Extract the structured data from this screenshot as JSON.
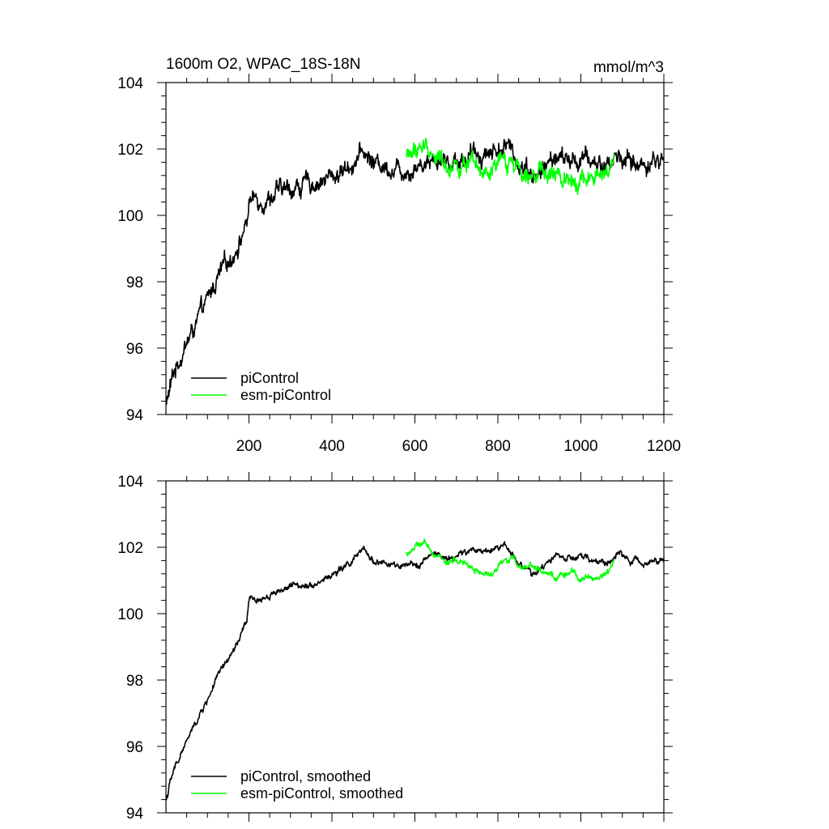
{
  "chart_data": [
    {
      "type": "line",
      "title": "1600m O2, WPAC_18S-18N",
      "units": "mmol/m^3",
      "xlim": [
        0,
        1200
      ],
      "ylim": [
        94,
        104
      ],
      "x_ticks": [
        200,
        400,
        600,
        800,
        1000,
        1200
      ],
      "x_tick_labels": [
        "200",
        "400",
        "600",
        "800",
        "1000",
        "1200"
      ],
      "y_ticks": [
        94,
        96,
        98,
        100,
        102,
        104
      ],
      "y_tick_labels": [
        "94",
        "96",
        "98",
        "100",
        "102",
        "104"
      ],
      "legend_position": "bottom-left",
      "legend": [
        "piControl",
        "esm-piControl"
      ],
      "series": [
        {
          "name": "piControl",
          "color": "#000000",
          "noise": 0.28,
          "x": [
            1,
            10,
            20,
            40,
            60,
            80,
            100,
            120,
            140,
            160,
            180,
            195,
            200,
            215,
            240,
            270,
            300,
            330,
            360,
            390,
            420,
            450,
            475,
            500,
            530,
            560,
            590,
            620,
            650,
            680,
            710,
            740,
            770,
            800,
            820,
            850,
            870,
            890,
            910,
            940,
            970,
            1000,
            1030,
            1060,
            1090,
            1120,
            1150,
            1180,
            1200
          ],
          "y": [
            94.3,
            94.8,
            95.3,
            95.9,
            96.4,
            96.9,
            97.4,
            98.0,
            98.4,
            98.8,
            99.3,
            99.8,
            100.4,
            100.5,
            100.5,
            100.7,
            100.8,
            100.9,
            101.0,
            101.1,
            101.3,
            101.6,
            101.9,
            101.6,
            101.5,
            101.4,
            101.4,
            101.6,
            101.8,
            101.6,
            101.7,
            101.8,
            101.9,
            102.0,
            102.1,
            101.6,
            101.5,
            101.1,
            101.4,
            101.8,
            101.6,
            101.7,
            101.6,
            101.5,
            101.8,
            101.6,
            101.5,
            101.7,
            101.6
          ]
        },
        {
          "name": "esm-piControl",
          "color": "#00ff00",
          "noise": 0.28,
          "x": [
            580,
            600,
            620,
            640,
            660,
            680,
            700,
            720,
            740,
            760,
            780,
            800,
            820,
            840,
            860,
            880,
            900,
            920,
            940,
            960,
            980,
            1000,
            1020,
            1040,
            1060,
            1080
          ],
          "y": [
            101.8,
            101.9,
            102.1,
            101.9,
            101.7,
            101.5,
            101.6,
            101.5,
            101.4,
            101.2,
            101.1,
            101.5,
            101.6,
            101.6,
            101.4,
            101.5,
            101.3,
            101.1,
            101.2,
            101.1,
            101.2,
            101.1,
            101.1,
            101.1,
            101.2,
            101.5
          ]
        }
      ]
    },
    {
      "type": "line",
      "title": "",
      "xlim": [
        0,
        1200
      ],
      "ylim": [
        94,
        104
      ],
      "x_ticks": [
        200,
        400,
        600,
        800,
        1000,
        1200
      ],
      "x_tick_labels": [],
      "y_ticks": [
        94,
        96,
        98,
        100,
        102,
        104
      ],
      "y_tick_labels": [
        "94",
        "96",
        "98",
        "100",
        "102",
        "104"
      ],
      "legend_position": "bottom-left",
      "legend": [
        "piControl, smoothed",
        "esm-piControl, smoothed"
      ],
      "series": [
        {
          "name": "piControl, smoothed",
          "color": "#000000",
          "noise": 0.1,
          "x": [
            1,
            10,
            20,
            40,
            60,
            80,
            100,
            120,
            140,
            160,
            180,
            195,
            200,
            215,
            240,
            270,
            300,
            330,
            360,
            390,
            420,
            450,
            475,
            500,
            530,
            560,
            590,
            620,
            650,
            680,
            710,
            740,
            770,
            800,
            820,
            850,
            870,
            890,
            910,
            940,
            970,
            1000,
            1030,
            1060,
            1090,
            1120,
            1150,
            1180,
            1200
          ],
          "y": [
            94.4,
            94.9,
            95.3,
            95.9,
            96.4,
            96.9,
            97.4,
            98.0,
            98.4,
            98.8,
            99.3,
            99.8,
            100.4,
            100.4,
            100.5,
            100.7,
            100.8,
            100.9,
            100.9,
            101.1,
            101.3,
            101.6,
            101.9,
            101.6,
            101.5,
            101.4,
            101.4,
            101.6,
            101.8,
            101.6,
            101.8,
            101.9,
            101.9,
            102.0,
            102.1,
            101.5,
            101.4,
            101.1,
            101.4,
            101.8,
            101.6,
            101.7,
            101.6,
            101.5,
            101.8,
            101.6,
            101.5,
            101.7,
            101.6
          ]
        },
        {
          "name": "esm-piControl, smoothed",
          "color": "#00ff00",
          "noise": 0.1,
          "x": [
            580,
            600,
            620,
            640,
            660,
            680,
            700,
            720,
            740,
            760,
            780,
            800,
            820,
            840,
            860,
            880,
            900,
            920,
            940,
            960,
            980,
            1000,
            1020,
            1040,
            1060,
            1080
          ],
          "y": [
            101.8,
            102.0,
            102.1,
            101.9,
            101.7,
            101.5,
            101.6,
            101.5,
            101.4,
            101.2,
            101.1,
            101.5,
            101.6,
            101.6,
            101.4,
            101.5,
            101.3,
            101.1,
            101.1,
            101.2,
            101.2,
            101.1,
            101.1,
            101.1,
            101.2,
            101.5
          ]
        }
      ]
    }
  ]
}
